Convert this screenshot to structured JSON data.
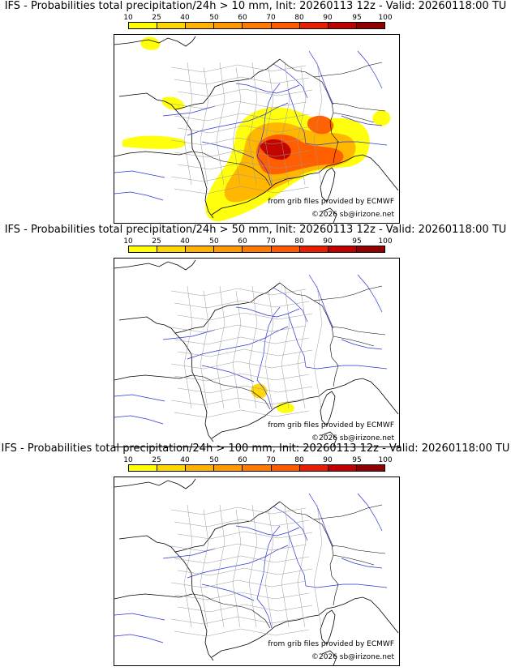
{
  "panels": [
    {
      "title": "IFS - Probabilities total precipitation/24h > 10 mm, Init: 20260113 12z - Valid: 20260118:00 TU",
      "credit_ecmwf": "from grib files provided by ECMWF",
      "credit_copyright": "©2026 sb@irizone.net",
      "probability_level": "high"
    },
    {
      "title": "IFS - Probabilities total precipitation/24h > 50 mm, Init: 20260113 12z - Valid: 20260118:00 TU",
      "credit_ecmwf": "from grib files provided by ECMWF",
      "credit_copyright": "©2026 sb@irizone.net",
      "probability_level": "low"
    },
    {
      "title": "IFS - Probabilities total precipitation/24h > 100 mm, Init: 20260113 12z - Valid: 20260118:00 TU",
      "credit_ecmwf": "from grib files provided by ECMWF",
      "credit_copyright": "©2026 sb@irizone.net",
      "probability_level": "none"
    }
  ],
  "colorbar": {
    "ticks": [
      "10",
      "25",
      "40",
      "50",
      "60",
      "70",
      "80",
      "90",
      "95",
      "100"
    ],
    "colors": [
      "#ffff00",
      "#ffd700",
      "#ffb300",
      "#ff9900",
      "#ff7a00",
      "#ff5a00",
      "#e81e00",
      "#c00000",
      "#900000",
      "#5a0000"
    ]
  }
}
